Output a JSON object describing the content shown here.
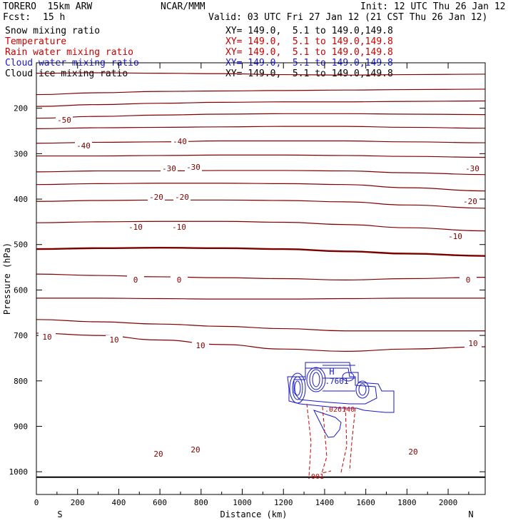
{
  "header": {
    "model": "TORERO  15km ARW",
    "org": "NCAR/MMM",
    "init": "Init: 12 UTC Thu 26 Jan 12",
    "fcst_label": "Fcst:",
    "fcst_value": "15 h",
    "valid": "Valid: 03 UTC Fri 27 Jan 12 (21 CST Thu 26 Jan 12)"
  },
  "fields": [
    {
      "name": "Snow mixing ratio",
      "xy": "XY= 149.0,  5.1 to 149.0,149.8",
      "color": "#000000"
    },
    {
      "name": "Temperature",
      "xy": "XY= 149.0,  5.1 to 149.0,149.8",
      "color": "#cc0000"
    },
    {
      "name": "Rain water mixing ratio",
      "xy": "XY= 149.0,  5.1 to 149.0,149.8",
      "color": "#cc0000"
    },
    {
      "name": "Cloud water mixing ratio",
      "xy": "XY= 149.0,  5.1 to 149.0,149.8",
      "color": "#1a1acc"
    },
    {
      "name": "Cloud ice mixing ratio",
      "xy": "XY= 149.0,  5.1 to 149.0,149.8",
      "color": "#000000"
    }
  ],
  "chart_data": {
    "type": "contour",
    "xlabel": "Distance (km)",
    "ylabel": "Pressure (hPa)",
    "xlim": [
      0,
      2180
    ],
    "ylim": [
      1050,
      100
    ],
    "x_ticks": [
      0,
      200,
      400,
      600,
      800,
      1000,
      1200,
      1400,
      1600,
      1800,
      2000
    ],
    "y_ticks": [
      200,
      300,
      400,
      500,
      600,
      700,
      800,
      900,
      1000
    ],
    "x_end_labels": {
      "left": "S",
      "right": "N"
    },
    "temperature": {
      "color": "#800000",
      "zero_color": "#7a0000",
      "isotherms": [
        {
          "t": -55,
          "p": [
            123,
            122,
            123,
            124,
            126,
            127,
            126,
            125
          ]
        },
        {
          "t": -50,
          "p": [
            170,
            166,
            163,
            162,
            161,
            160,
            159,
            158
          ]
        },
        {
          "t": -45,
          "p": [
            196,
            192,
            189,
            187,
            186,
            186,
            185,
            184
          ]
        },
        {
          "t": -40,
          "p": [
            222,
            218,
            215,
            213,
            212,
            212,
            213,
            214
          ]
        },
        {
          "t": -35,
          "p": [
            245,
            243,
            242,
            241,
            240,
            240,
            242,
            244
          ]
        },
        {
          "t": -30,
          "p": [
            277,
            275,
            274,
            272,
            272,
            272,
            274,
            276
          ]
        },
        {
          "t": -25,
          "p": [
            305,
            305,
            304,
            303,
            303,
            304,
            306,
            308
          ]
        },
        {
          "t": -20,
          "p": [
            340,
            338,
            338,
            337,
            337,
            338,
            342,
            346
          ]
        },
        {
          "t": -15,
          "p": [
            368,
            366,
            365,
            365,
            366,
            368,
            375,
            382
          ]
        },
        {
          "t": -10,
          "p": [
            405,
            403,
            402,
            402,
            403,
            406,
            413,
            420
          ]
        },
        {
          "t": -5,
          "p": [
            452,
            450,
            449,
            449,
            451,
            456,
            463,
            470
          ]
        },
        {
          "t": 0,
          "p": [
            510,
            508,
            507,
            508,
            510,
            515,
            520,
            525
          ]
        },
        {
          "t": 5,
          "p": [
            565,
            568,
            571,
            573,
            575,
            578,
            575,
            572
          ]
        },
        {
          "t": 10,
          "p": [
            618,
            618,
            619,
            620,
            620,
            619,
            618,
            618
          ]
        },
        {
          "t": 15,
          "p": [
            665,
            670,
            675,
            680,
            685,
            690,
            690,
            690
          ]
        },
        {
          "t": 20,
          "p": [
            695,
            700,
            710,
            720,
            730,
            735,
            730,
            725
          ]
        }
      ],
      "labels": [
        "-50",
        "-40",
        "-40",
        "-30",
        "-30",
        "-30",
        "-20",
        "-20",
        "-20",
        "-10",
        "-10",
        "-10",
        "0",
        "0",
        "0",
        "10",
        "10",
        "10",
        "10",
        "20",
        "20",
        "20"
      ]
    },
    "rain_water": {
      "color": "#cc0000",
      "labels": [
        ".026140",
        ".001"
      ]
    },
    "cloud_water": {
      "color": "#1a1acc",
      "max_label": "H",
      "max_value": ".7601"
    },
    "surface_line_hpa": 1012
  }
}
